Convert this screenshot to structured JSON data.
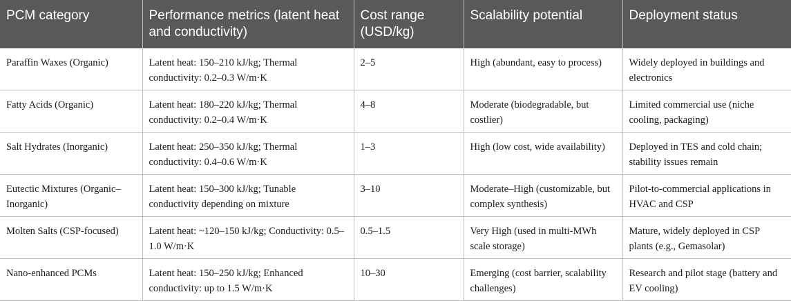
{
  "header": {
    "columns": [
      "PCM category",
      "Performance metrics (latent heat and conductivity)",
      "Cost range (USD/kg)",
      "Scalability potential",
      "Deployment status"
    ]
  },
  "rows": [
    {
      "category": "Paraffin Waxes (Organic)",
      "performance": "Latent heat: 150–210 kJ/kg; Thermal conductivity: 0.2–0.3 W/m·K",
      "cost": "2–5",
      "scalability": "High (abundant, easy to process)",
      "deployment": "Widely deployed in buildings and electronics"
    },
    {
      "category": "Fatty Acids (Organic)",
      "performance": "Latent heat: 180–220 kJ/kg; Thermal conductivity: 0.2–0.4 W/m·K",
      "cost": "4–8",
      "scalability": "Moderate (biodegradable, but costlier)",
      "deployment": "Limited commercial use (niche cooling, packaging)"
    },
    {
      "category": "Salt Hydrates (Inorganic)",
      "performance": "Latent heat: 250–350 kJ/kg; Thermal conductivity: 0.4–0.6 W/m·K",
      "cost": "1–3",
      "scalability": "High (low cost, wide availability)",
      "deployment": "Deployed in TES and cold chain; stability issues remain"
    },
    {
      "category": "Eutectic Mixtures (Organic–Inorganic)",
      "performance": "Latent heat: 150–300 kJ/kg; Tunable conductivity depending on mixture",
      "cost": "3–10",
      "scalability": "Moderate–High (customizable, but complex synthesis)",
      "deployment": "Pilot-to-commercial applications in HVAC and CSP"
    },
    {
      "category": "Molten Salts (CSP-focused)",
      "performance": "Latent heat: ~120–150 kJ/kg; Conductivity: 0.5–1.0 W/m·K",
      "cost": "0.5–1.5",
      "scalability": "Very High (used in multi-MWh scale storage)",
      "deployment": "Mature, widely deployed in CSP plants (e.g., Gemasolar)"
    },
    {
      "category": "Nano-enhanced PCMs",
      "performance": "Latent heat: 150–250 kJ/kg; Enhanced conductivity: up to 1.5 W/m·K",
      "cost": "10–30",
      "scalability": "Emerging (cost barrier, scalability challenges)",
      "deployment": "Research and pilot stage (battery and EV cooling)"
    }
  ],
  "colors": {
    "header_bg": "#595959",
    "header_text": "#ffffff",
    "grid_line": "#bfbfbf",
    "body_text": "#1a1a1a"
  }
}
